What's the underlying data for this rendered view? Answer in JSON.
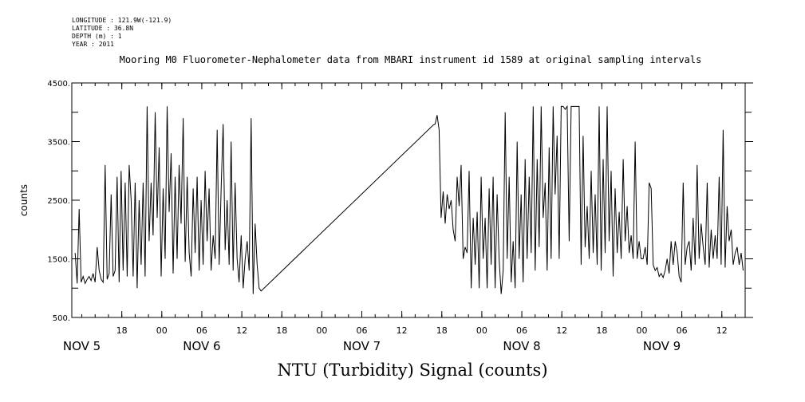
{
  "header": {
    "longitude": "LONGITUDE : 121.9W(-121.9)",
    "latitude": "LATITUDE : 36.8N",
    "depth": "DEPTH (m) : 1",
    "year": "YEAR : 2011"
  },
  "chart_data": {
    "type": "line",
    "title": "Mooring M0 Fluorometer-Nephalometer data from MBARI instrument id 1589 at original sampling intervals",
    "ylabel": "counts",
    "xlabel": "NTU (Turbidity) Signal (counts)",
    "ylim": [
      500,
      4500
    ],
    "yticks": [
      "500.",
      "1500.",
      "2500.",
      "3500.",
      "4500."
    ],
    "xlim": [
      10.5,
      111.5
    ],
    "x_unit": "hours since Nov 5 00:00",
    "hour_ticks": [
      {
        "x": 18,
        "label": "18"
      },
      {
        "x": 24,
        "label": "00"
      },
      {
        "x": 30,
        "label": "06"
      },
      {
        "x": 36,
        "label": "12"
      },
      {
        "x": 42,
        "label": "18"
      },
      {
        "x": 48,
        "label": "00"
      },
      {
        "x": 54,
        "label": "06"
      },
      {
        "x": 60,
        "label": "12"
      },
      {
        "x": 66,
        "label": "18"
      },
      {
        "x": 72,
        "label": "00"
      },
      {
        "x": 78,
        "label": "06"
      },
      {
        "x": 84,
        "label": "12"
      },
      {
        "x": 90,
        "label": "18"
      },
      {
        "x": 96,
        "label": "00"
      },
      {
        "x": 102,
        "label": "06"
      },
      {
        "x": 108,
        "label": "12"
      }
    ],
    "day_labels": [
      {
        "x": 12,
        "label": "NOV  5"
      },
      {
        "x": 30,
        "label": "NOV  6"
      },
      {
        "x": 54,
        "label": "NOV  7"
      },
      {
        "x": 78,
        "label": "NOV  8"
      },
      {
        "x": 99,
        "label": "NOV  9"
      }
    ],
    "series": [
      {
        "values": [
          [
            11.0,
            1600
          ],
          [
            11.3,
            1080
          ],
          [
            11.6,
            2350
          ],
          [
            11.9,
            1100
          ],
          [
            12.2,
            1200
          ],
          [
            12.5,
            1080
          ],
          [
            12.8,
            1150
          ],
          [
            13.1,
            1200
          ],
          [
            13.4,
            1130
          ],
          [
            13.7,
            1250
          ],
          [
            14.0,
            1100
          ],
          [
            14.3,
            1700
          ],
          [
            14.6,
            1300
          ],
          [
            14.9,
            1150
          ],
          [
            15.2,
            1100
          ],
          [
            15.5,
            3100
          ],
          [
            15.8,
            1150
          ],
          [
            16.1,
            1250
          ],
          [
            16.4,
            2600
          ],
          [
            16.7,
            1200
          ],
          [
            17.0,
            1300
          ],
          [
            17.3,
            2900
          ],
          [
            17.6,
            1100
          ],
          [
            17.9,
            3000
          ],
          [
            18.2,
            1300
          ],
          [
            18.5,
            2800
          ],
          [
            18.8,
            1200
          ],
          [
            19.1,
            3100
          ],
          [
            19.4,
            2500
          ],
          [
            19.7,
            1200
          ],
          [
            20.0,
            2800
          ],
          [
            20.3,
            1000
          ],
          [
            20.6,
            2500
          ],
          [
            20.9,
            1400
          ],
          [
            21.2,
            2800
          ],
          [
            21.5,
            1200
          ],
          [
            21.8,
            4100
          ],
          [
            22.1,
            1800
          ],
          [
            22.4,
            2800
          ],
          [
            22.7,
            1900
          ],
          [
            23.0,
            4000
          ],
          [
            23.3,
            2200
          ],
          [
            23.6,
            3400
          ],
          [
            23.9,
            1200
          ],
          [
            24.2,
            2700
          ],
          [
            24.5,
            1500
          ],
          [
            24.8,
            4100
          ],
          [
            25.1,
            2300
          ],
          [
            25.4,
            3300
          ],
          [
            25.7,
            1250
          ],
          [
            26.0,
            2900
          ],
          [
            26.3,
            1500
          ],
          [
            26.6,
            3100
          ],
          [
            26.9,
            2100
          ],
          [
            27.2,
            3900
          ],
          [
            27.5,
            1450
          ],
          [
            27.8,
            2900
          ],
          [
            28.1,
            1600
          ],
          [
            28.4,
            1200
          ],
          [
            28.7,
            2700
          ],
          [
            29.0,
            1600
          ],
          [
            29.3,
            2900
          ],
          [
            29.6,
            1300
          ],
          [
            29.9,
            2500
          ],
          [
            30.2,
            1400
          ],
          [
            30.5,
            3000
          ],
          [
            30.8,
            1800
          ],
          [
            31.1,
            2700
          ],
          [
            31.4,
            1300
          ],
          [
            31.7,
            1900
          ],
          [
            32.0,
            1500
          ],
          [
            32.3,
            3700
          ],
          [
            32.6,
            1400
          ],
          [
            32.9,
            2700
          ],
          [
            33.2,
            3800
          ],
          [
            33.5,
            1650
          ],
          [
            33.8,
            2500
          ],
          [
            34.1,
            1400
          ],
          [
            34.4,
            3500
          ],
          [
            34.7,
            1300
          ],
          [
            35.0,
            2800
          ],
          [
            35.3,
            1500
          ],
          [
            35.6,
            1100
          ],
          [
            35.9,
            1900
          ],
          [
            36.2,
            1000
          ],
          [
            36.5,
            1500
          ],
          [
            36.8,
            1800
          ],
          [
            37.1,
            1300
          ],
          [
            37.4,
            3900
          ],
          [
            37.7,
            900
          ],
          [
            38.0,
            2100
          ],
          [
            38.3,
            1400
          ],
          [
            38.6,
            1000
          ],
          [
            38.9,
            950
          ],
          [
            64.7,
            3780
          ],
          [
            65.0,
            3800
          ],
          [
            65.3,
            3950
          ],
          [
            65.6,
            3700
          ],
          [
            65.9,
            2200
          ],
          [
            66.2,
            2650
          ],
          [
            66.5,
            2100
          ],
          [
            66.8,
            2600
          ],
          [
            67.1,
            2350
          ],
          [
            67.4,
            2500
          ],
          [
            67.7,
            2000
          ],
          [
            68.0,
            1800
          ],
          [
            68.3,
            2900
          ],
          [
            68.6,
            2400
          ],
          [
            68.9,
            3100
          ],
          [
            69.2,
            1500
          ],
          [
            69.5,
            1700
          ],
          [
            69.8,
            1600
          ],
          [
            70.1,
            3000
          ],
          [
            70.4,
            1000
          ],
          [
            70.7,
            2200
          ],
          [
            71.0,
            1400
          ],
          [
            71.3,
            2300
          ],
          [
            71.6,
            1000
          ],
          [
            71.9,
            2900
          ],
          [
            72.2,
            1500
          ],
          [
            72.5,
            2200
          ],
          [
            72.8,
            1000
          ],
          [
            73.1,
            2700
          ],
          [
            73.4,
            1400
          ],
          [
            73.7,
            2900
          ],
          [
            74.0,
            1000
          ],
          [
            74.3,
            2600
          ],
          [
            74.6,
            1500
          ],
          [
            74.9,
            900
          ],
          [
            75.2,
            1300
          ],
          [
            75.5,
            4000
          ],
          [
            75.8,
            1500
          ],
          [
            76.1,
            2900
          ],
          [
            76.4,
            1100
          ],
          [
            76.7,
            1800
          ],
          [
            77.0,
            1000
          ],
          [
            77.3,
            3500
          ],
          [
            77.6,
            1500
          ],
          [
            77.9,
            2600
          ],
          [
            78.2,
            1100
          ],
          [
            78.5,
            3200
          ],
          [
            78.8,
            1500
          ],
          [
            79.1,
            2900
          ],
          [
            79.4,
            1600
          ],
          [
            79.7,
            4100
          ],
          [
            80.0,
            1300
          ],
          [
            80.3,
            3200
          ],
          [
            80.6,
            1700
          ],
          [
            80.9,
            4100
          ],
          [
            81.2,
            2200
          ],
          [
            81.5,
            2800
          ],
          [
            81.8,
            1300
          ],
          [
            82.1,
            3400
          ],
          [
            82.4,
            1500
          ],
          [
            82.7,
            4100
          ],
          [
            83.0,
            2600
          ],
          [
            83.3,
            3600
          ],
          [
            83.6,
            1500
          ],
          [
            83.9,
            4100
          ],
          [
            84.2,
            4100
          ],
          [
            84.5,
            4050
          ],
          [
            84.8,
            4100
          ],
          [
            85.1,
            1800
          ],
          [
            85.4,
            4100
          ],
          [
            85.7,
            4100
          ],
          [
            86.0,
            4100
          ],
          [
            86.3,
            4100
          ],
          [
            86.6,
            4100
          ],
          [
            86.9,
            1400
          ],
          [
            87.2,
            3600
          ],
          [
            87.5,
            1700
          ],
          [
            87.8,
            2400
          ],
          [
            88.1,
            1500
          ],
          [
            88.4,
            3000
          ],
          [
            88.7,
            1600
          ],
          [
            89.0,
            2600
          ],
          [
            89.3,
            1400
          ],
          [
            89.6,
            4100
          ],
          [
            89.9,
            1300
          ],
          [
            90.2,
            3200
          ],
          [
            90.5,
            1600
          ],
          [
            90.8,
            4100
          ],
          [
            91.1,
            1800
          ],
          [
            91.4,
            3000
          ],
          [
            91.7,
            1200
          ],
          [
            92.0,
            2700
          ],
          [
            92.3,
            1600
          ],
          [
            92.6,
            2300
          ],
          [
            92.9,
            1500
          ],
          [
            93.2,
            3200
          ],
          [
            93.5,
            1800
          ],
          [
            93.8,
            2400
          ],
          [
            94.1,
            1600
          ],
          [
            94.4,
            1900
          ],
          [
            94.7,
            1500
          ],
          [
            95.0,
            3500
          ],
          [
            95.3,
            1500
          ],
          [
            95.6,
            1800
          ],
          [
            95.9,
            1500
          ],
          [
            96.2,
            1500
          ],
          [
            96.5,
            1700
          ],
          [
            96.8,
            1400
          ],
          [
            97.1,
            2800
          ],
          [
            97.4,
            2700
          ],
          [
            97.7,
            1400
          ],
          [
            98.0,
            1300
          ],
          [
            98.3,
            1350
          ],
          [
            98.6,
            1200
          ],
          [
            98.9,
            1250
          ],
          [
            99.2,
            1180
          ],
          [
            99.5,
            1300
          ],
          [
            99.8,
            1500
          ],
          [
            100.1,
            1250
          ],
          [
            100.4,
            1800
          ],
          [
            100.7,
            1400
          ],
          [
            101.0,
            1800
          ],
          [
            101.3,
            1600
          ],
          [
            101.6,
            1200
          ],
          [
            101.9,
            1100
          ],
          [
            102.2,
            2800
          ],
          [
            102.5,
            1400
          ],
          [
            102.8,
            1700
          ],
          [
            103.1,
            1800
          ],
          [
            103.4,
            1300
          ],
          [
            103.7,
            2200
          ],
          [
            104.0,
            1400
          ],
          [
            104.3,
            3100
          ],
          [
            104.6,
            1500
          ],
          [
            104.9,
            2100
          ],
          [
            105.2,
            1700
          ],
          [
            105.5,
            1400
          ],
          [
            105.8,
            2800
          ],
          [
            106.1,
            1350
          ],
          [
            106.4,
            2000
          ],
          [
            106.7,
            1500
          ],
          [
            107.0,
            1900
          ],
          [
            107.3,
            1500
          ],
          [
            107.6,
            2900
          ],
          [
            107.9,
            1400
          ],
          [
            108.2,
            3700
          ],
          [
            108.5,
            1350
          ],
          [
            108.8,
            2400
          ],
          [
            109.1,
            1800
          ],
          [
            109.4,
            2000
          ],
          [
            109.7,
            1400
          ],
          [
            110.0,
            1600
          ],
          [
            110.3,
            1700
          ],
          [
            110.6,
            1400
          ],
          [
            110.9,
            1600
          ],
          [
            111.2,
            1300
          ]
        ]
      }
    ]
  }
}
